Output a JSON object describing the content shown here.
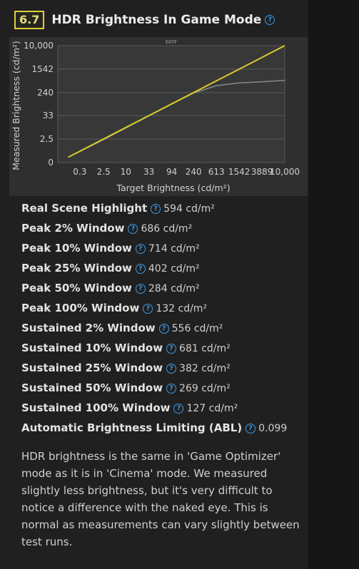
{
  "section": {
    "number": "6.7",
    "title": "HDR Brightness In Game Mode"
  },
  "chart_data": {
    "type": "line",
    "title": "EOTF",
    "xlabel": "Target Brightness (cd/m²)",
    "ylabel": "Measured Brightness (cd/m²)",
    "x_ticks": [
      "0.3",
      "2.5",
      "10",
      "33",
      "94",
      "240",
      "613",
      "1542",
      "3889",
      "10,000"
    ],
    "y_ticks": [
      "0",
      "2.5",
      "33",
      "240",
      "1542",
      "10,000"
    ],
    "grid": true,
    "series": [
      {
        "color": "#d4cc2a",
        "x": [
          0.05,
          0.3,
          2.5,
          10,
          33,
          94,
          240,
          613,
          1542,
          3889,
          10000
        ],
        "y": [
          0.05,
          0.3,
          2.5,
          10,
          33,
          94,
          240,
          613,
          1542,
          3889,
          10000
        ]
      },
      {
        "color": "#8a8a8a",
        "x": [
          0.05,
          0.3,
          2.5,
          10,
          33,
          94,
          240,
          613,
          1542,
          3889,
          10000
        ],
        "y": [
          0.05,
          0.28,
          2.3,
          9.5,
          32,
          92,
          230,
          420,
          520,
          570,
          640
        ]
      }
    ]
  },
  "metrics": [
    {
      "label": "Real Scene Highlight",
      "value": "594 cd/m²"
    },
    {
      "label": "Peak 2% Window",
      "value": "686 cd/m²"
    },
    {
      "label": "Peak 10% Window",
      "value": "714 cd/m²"
    },
    {
      "label": "Peak 25% Window",
      "value": "402 cd/m²"
    },
    {
      "label": "Peak 50% Window",
      "value": "284 cd/m²"
    },
    {
      "label": "Peak 100% Window",
      "value": "132 cd/m²"
    },
    {
      "label": "Sustained 2% Window",
      "value": "556 cd/m²"
    },
    {
      "label": "Sustained 10% Window",
      "value": "681 cd/m²"
    },
    {
      "label": "Sustained 25% Window",
      "value": "382 cd/m²"
    },
    {
      "label": "Sustained 50% Window",
      "value": "269 cd/m²"
    },
    {
      "label": "Sustained 100% Window",
      "value": "127 cd/m²"
    },
    {
      "label": "Automatic Brightness Limiting (ABL)",
      "value": "0.099"
    }
  ],
  "description": "HDR brightness is the same in 'Game Optimizer' mode as it is in 'Cinema' mode. We measured slightly less brightness, but it's very difficult to notice a difference with the naked eye. This is normal as measurements can vary slightly between test runs.",
  "icons": {
    "help": "help-question-icon"
  },
  "colors": {
    "accent_yellow": "#e0cf3a",
    "help_blue": "#3d9ae8"
  }
}
